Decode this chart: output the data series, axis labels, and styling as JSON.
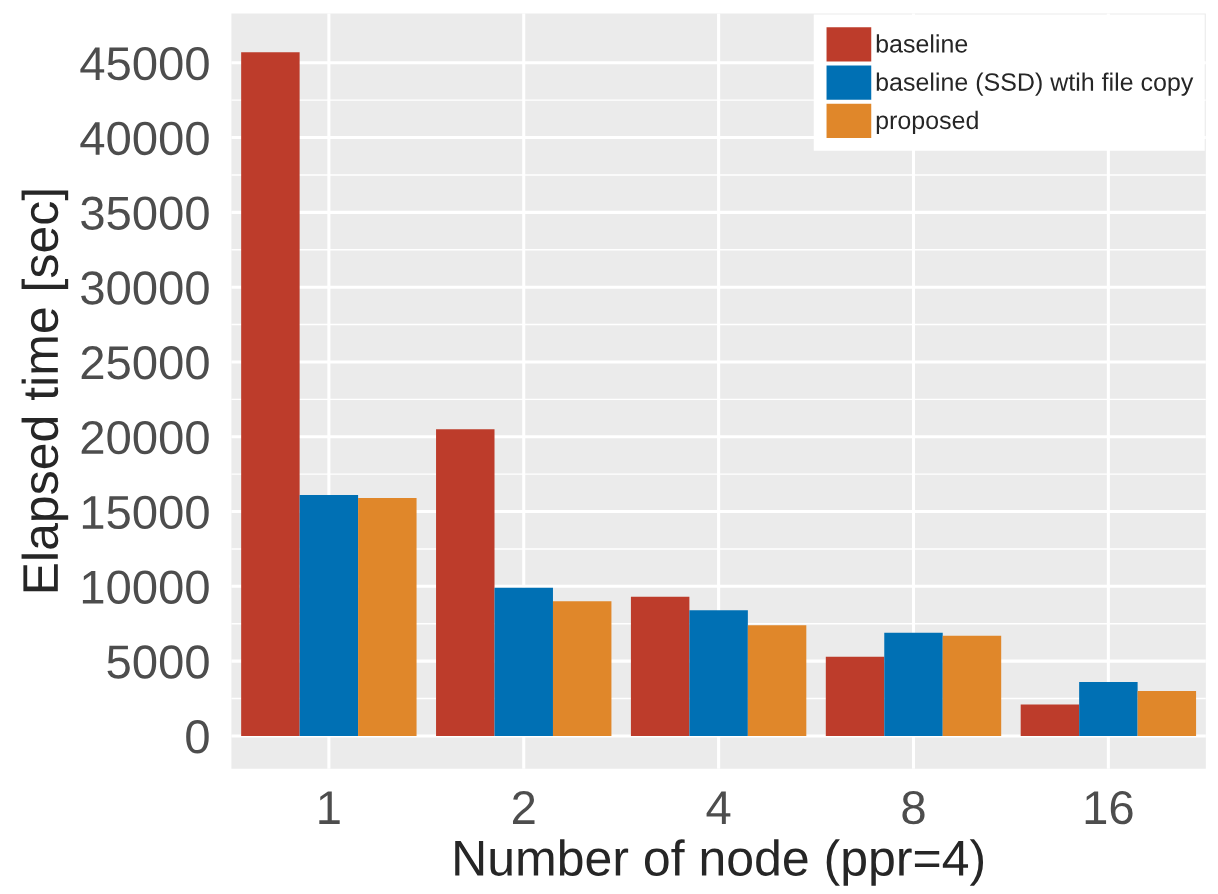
{
  "chart_data": {
    "type": "bar",
    "xlabel": "Number of node (ppr=4)",
    "ylabel": "Elapsed time [sec]",
    "categories": [
      "1",
      "2",
      "4",
      "8",
      "16"
    ],
    "series": [
      {
        "name": "baseline",
        "color": "#bd3c2b",
        "values": [
          45700,
          20500,
          9300,
          5300,
          2100
        ]
      },
      {
        "name": "baseline (SSD) wtih file copy",
        "color": "#0070b4",
        "values": [
          16100,
          9900,
          8400,
          6900,
          3600
        ]
      },
      {
        "name": "proposed",
        "color": "#e0872a",
        "values": [
          15900,
          9000,
          7400,
          6700,
          3000
        ]
      }
    ],
    "ylim": [
      -2200,
      48300
    ],
    "yticks": [
      0,
      5000,
      10000,
      15000,
      20000,
      25000,
      30000,
      35000,
      40000,
      45000
    ],
    "grid": true,
    "legend": "top right"
  }
}
